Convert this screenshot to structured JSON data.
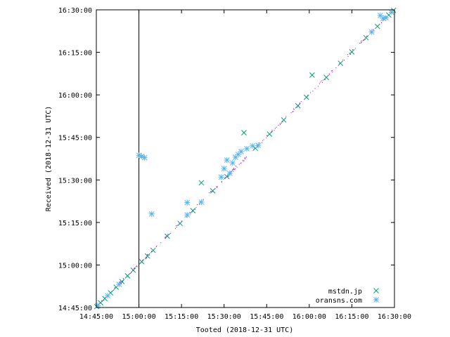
{
  "chart_data": {
    "type": "scatter",
    "xlabel": "Tooted (2018-12-31 UTC)",
    "ylabel": "Received (2018-12-31 UTC)",
    "xlim": [
      "14:45:00",
      "16:30:00"
    ],
    "ylim": [
      "14:45:00",
      "16:30:00"
    ],
    "x_ticks": [
      "14:45:00",
      "15:00:00",
      "15:15:00",
      "15:30:00",
      "15:45:00",
      "16:00:00",
      "16:15:00",
      "16:30:00"
    ],
    "y_ticks": [
      "14:45:00",
      "15:00:00",
      "15:15:00",
      "15:30:00",
      "15:45:00",
      "16:00:00",
      "16:15:00",
      "16:30:00"
    ],
    "grid": false,
    "legend_position": "bottom-right",
    "vertical_marker": "15:00:00",
    "colors": {
      "mstdn": "#009e73",
      "oransns": "#56b4e9",
      "other": "#9400d3",
      "marker_line": "#000000"
    },
    "series": [
      {
        "name": "mstdn.jp",
        "marker": "x",
        "points": [
          [
            "14:45:10",
            "14:45:20"
          ],
          [
            "14:46:30",
            "14:46:40"
          ],
          [
            "14:48:00",
            "14:48:10"
          ],
          [
            "14:50:00",
            "14:50:10"
          ],
          [
            "14:52:00",
            "14:52:10"
          ],
          [
            "14:54:00",
            "14:54:10"
          ],
          [
            "14:56:00",
            "14:56:10"
          ],
          [
            "14:58:00",
            "14:58:10"
          ],
          [
            "15:01:00",
            "15:01:10"
          ],
          [
            "15:03:00",
            "15:03:10"
          ],
          [
            "15:05:00",
            "15:05:10"
          ],
          [
            "15:10:00",
            "15:10:10"
          ],
          [
            "15:14:30",
            "15:14:40"
          ],
          [
            "15:19:00",
            "15:19:10"
          ],
          [
            "15:22:00",
            "15:29:00"
          ],
          [
            "15:26:00",
            "15:26:10"
          ],
          [
            "15:31:00",
            "15:31:10"
          ],
          [
            "15:37:00",
            "15:46:40"
          ],
          [
            "15:41:00",
            "15:41:10"
          ],
          [
            "15:46:00",
            "15:46:10"
          ],
          [
            "15:51:00",
            "15:51:10"
          ],
          [
            "15:56:00",
            "15:56:10"
          ],
          [
            "15:59:00",
            "15:59:10"
          ],
          [
            "16:01:00",
            "16:07:00"
          ],
          [
            "16:06:00",
            "16:06:10"
          ],
          [
            "16:11:00",
            "16:11:10"
          ],
          [
            "16:15:00",
            "16:15:10"
          ],
          [
            "16:20:00",
            "16:20:10"
          ],
          [
            "16:24:00",
            "16:24:10"
          ],
          [
            "16:28:00",
            "16:28:10"
          ],
          [
            "16:29:40",
            "16:29:50"
          ]
        ]
      },
      {
        "name": "oransns.com",
        "marker": "*",
        "points": [
          [
            "14:45:30",
            "14:45:40"
          ],
          [
            "14:49:00",
            "14:49:10"
          ],
          [
            "14:53:00",
            "14:53:10"
          ],
          [
            "15:00:00",
            "15:38:40"
          ],
          [
            "15:01:00",
            "15:38:20"
          ],
          [
            "15:02:00",
            "15:37:50"
          ],
          [
            "15:04:30",
            "15:18:00"
          ],
          [
            "15:17:00",
            "15:17:40"
          ],
          [
            "15:17:00",
            "15:22:00"
          ],
          [
            "15:22:00",
            "15:22:10"
          ],
          [
            "15:29:00",
            "15:31:00"
          ],
          [
            "15:30:00",
            "15:34:00"
          ],
          [
            "15:31:00",
            "15:37:00"
          ],
          [
            "15:32:00",
            "15:32:20"
          ],
          [
            "15:33:00",
            "15:36:00"
          ],
          [
            "15:34:00",
            "15:38:00"
          ],
          [
            "15:35:00",
            "15:39:00"
          ],
          [
            "15:36:00",
            "15:40:00"
          ],
          [
            "15:38:00",
            "15:41:00"
          ],
          [
            "15:40:00",
            "15:42:00"
          ],
          [
            "15:42:00",
            "15:42:10"
          ],
          [
            "16:22:00",
            "16:22:10"
          ],
          [
            "16:25:00",
            "16:28:00"
          ],
          [
            "16:26:00",
            "16:27:00"
          ],
          [
            "16:27:00",
            "16:27:10"
          ],
          [
            "16:29:00",
            "16:29:10"
          ]
        ]
      }
    ]
  },
  "legend": {
    "items": [
      {
        "label": "mstdn.jp"
      },
      {
        "label": "oransns.com"
      }
    ]
  }
}
